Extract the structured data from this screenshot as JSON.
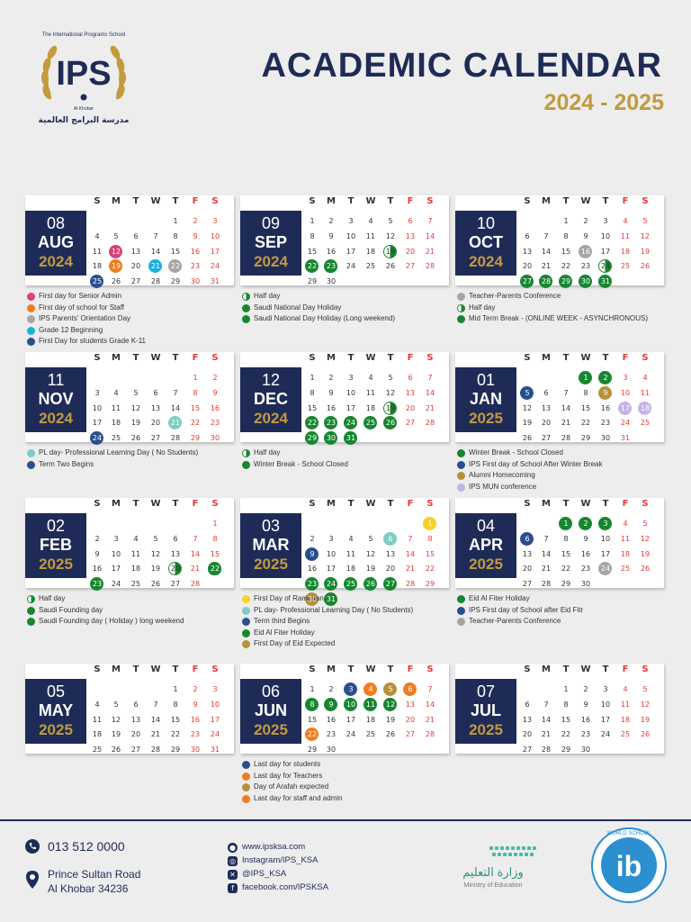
{
  "header": {
    "title": "ACADEMIC CALENDAR",
    "years": "2024 - 2025",
    "logo_text": "IPS",
    "logo_ring_text": "The International Programs School",
    "logo_arabic": "مدرسة البرامج العالمية",
    "logo_city": "Al Khobar"
  },
  "weekday_labels": [
    "S",
    "M",
    "T",
    "W",
    "T",
    "F",
    "S"
  ],
  "colors": {
    "navy": "#1f2b57",
    "gold": "#c39a3c",
    "green": "#17862f",
    "pink": "#d9417a",
    "orange": "#f07d1f",
    "gray": "#a6a6a6",
    "cyan": "#19b2e0",
    "blue": "#2a4f8f",
    "teal": "#7ecdc4",
    "lavender": "#c5b2e8",
    "yellow": "#f6d322",
    "ochre": "#b8903a"
  },
  "months": [
    {
      "num": "08",
      "name": "AUG",
      "year": "2024",
      "start": 4,
      "days": 31,
      "marks": {
        "12": "pink",
        "19": "orange",
        "21": "cyan",
        "22": "gray",
        "25": "blue"
      },
      "legend": [
        {
          "color": "pink",
          "text": "First day for Senior Admin"
        },
        {
          "color": "orange",
          "text": "First day of school for Staff"
        },
        {
          "color": "gray",
          "text": "IPS Parents' Orientation Day"
        },
        {
          "color": "cyan",
          "text": "Grade 12  Beginning"
        },
        {
          "color": "blue",
          "text": "First Day for students Grade K-11"
        }
      ]
    },
    {
      "num": "09",
      "name": "SEP",
      "year": "2024",
      "start": 0,
      "days": 30,
      "marks": {
        "19": "half",
        "22": "green",
        "23": "heart"
      },
      "legend": [
        {
          "color": "half",
          "text": "Half day"
        },
        {
          "color": "heart",
          "text": "Saudi National Day Holiday"
        },
        {
          "color": "green",
          "text": "Saudi National Day Holiday (Long weekend)"
        }
      ]
    },
    {
      "num": "10",
      "name": "OCT",
      "year": "2024",
      "start": 2,
      "days": 31,
      "marks": {
        "16": "gray",
        "24": "half",
        "27": "green",
        "28": "green",
        "29": "green",
        "30": "green",
        "31": "green"
      },
      "legend": [
        {
          "color": "gray",
          "text": "Teacher-Parents Conference"
        },
        {
          "color": "half",
          "text": "Half day"
        },
        {
          "color": "green",
          "text": "Mid Term Break - (ONLINE WEEK - ASYNCHRONOUS)"
        }
      ]
    },
    {
      "num": "11",
      "name": "NOV",
      "year": "2024",
      "start": 5,
      "days": 30,
      "marks": {
        "21": "teal",
        "24": "blue"
      },
      "legend": [
        {
          "color": "teal",
          "text": "PL day- Professional Learning Day ( No Students)"
        },
        {
          "color": "blue",
          "text": "Term Two Begins"
        }
      ]
    },
    {
      "num": "12",
      "name": "DEC",
      "year": "2024",
      "start": 0,
      "days": 31,
      "marks": {
        "19": "half",
        "22": "green",
        "23": "green",
        "24": "green",
        "25": "green",
        "26": "green",
        "29": "green",
        "30": "green",
        "31": "green"
      },
      "legend": [
        {
          "color": "half",
          "text": "Half day"
        },
        {
          "color": "green",
          "text": "Winter Break - School Closed"
        }
      ]
    },
    {
      "num": "01",
      "name": "JAN",
      "year": "2025",
      "start": 3,
      "days": 31,
      "marks": {
        "1": "green",
        "2": "green",
        "5": "blue",
        "9": "ochre",
        "17": "lavender",
        "18": "lavender"
      },
      "legend": [
        {
          "color": "green",
          "text": "Winter Break - School Closed"
        },
        {
          "color": "blue",
          "text": "IPS First day of School After Winter Break"
        },
        {
          "color": "ochre",
          "text": "Alumni Homecoming"
        },
        {
          "color": "lavender",
          "text": "IPS MUN conference"
        }
      ]
    },
    {
      "num": "02",
      "name": "FEB",
      "year": "2025",
      "start": 6,
      "days": 28,
      "marks": {
        "20": "half",
        "22": "heart",
        "23": "green"
      },
      "legend": [
        {
          "color": "half",
          "text": "Half day"
        },
        {
          "color": "heart",
          "text": "Saudi Founding day"
        },
        {
          "color": "green",
          "text": "Saudi Founding day ( Holiday ) long weekend"
        }
      ]
    },
    {
      "num": "03",
      "name": "MAR",
      "year": "2025",
      "start": 6,
      "days": 31,
      "marks": {
        "1": "yellow",
        "6": "teal",
        "9": "blue",
        "23": "green",
        "24": "green",
        "25": "green",
        "26": "green",
        "27": "green",
        "30": "ochre",
        "31": "green"
      },
      "legend": [
        {
          "color": "yellow",
          "text": "First Day of Ramadan"
        },
        {
          "color": "teal",
          "text": "PL day- Professional Learning Day ( No Students)"
        },
        {
          "color": "blue",
          "text": "Term third Begins"
        },
        {
          "color": "green",
          "text": "Eid Al Fiter Holiday"
        },
        {
          "color": "ochre",
          "text": "First Day of Eid Expected"
        }
      ]
    },
    {
      "num": "04",
      "name": "APR",
      "year": "2025",
      "start": 2,
      "days": 30,
      "marks": {
        "1": "green",
        "2": "green",
        "3": "green",
        "6": "blue",
        "24": "gray"
      },
      "legend": [
        {
          "color": "green",
          "text": "Eid Al Fiter Holiday"
        },
        {
          "color": "blue",
          "text": "IPS First day of School after Eid Fitr"
        },
        {
          "color": "gray",
          "text": "Teacher-Parents Conference"
        }
      ]
    },
    {
      "num": "05",
      "name": "MAY",
      "year": "2025",
      "start": 4,
      "days": 31,
      "marks": {},
      "legend": []
    },
    {
      "num": "06",
      "name": "JUN",
      "year": "2025",
      "start": 0,
      "days": 30,
      "marks": {
        "3": "blue",
        "4": "orange",
        "5": "ochre",
        "6": "orange",
        "8": "green",
        "9": "green",
        "10": "green",
        "11": "green",
        "12": "green",
        "22": "orange"
      },
      "legend": [
        {
          "color": "blue",
          "text": "Last day for students"
        },
        {
          "color": "orange",
          "text": "Last day for Teachers"
        },
        {
          "color": "ochre",
          "text": "Day of Arafah expected"
        },
        {
          "color": "orange",
          "text": "Last day for staff and admin"
        }
      ]
    },
    {
      "num": "07",
      "name": "JUL",
      "year": "2025",
      "start": 2,
      "days": 30,
      "marks": {},
      "legend": []
    }
  ],
  "footer": {
    "phone": "013 512 0000",
    "address1": "Prince Sultan Road",
    "address2": "Al Khobar 34236",
    "web": "www.ipsksa.com",
    "instagram": "Instagram/IPS_KSA",
    "twitter": "@IPS_KSA",
    "facebook": "facebook.com/IPSKSA",
    "moe_arabic": "وزارة التعليم",
    "moe_english": "Ministry of Education",
    "ib_text": "ib",
    "ib_ring": "WORLD SCHOOL"
  }
}
